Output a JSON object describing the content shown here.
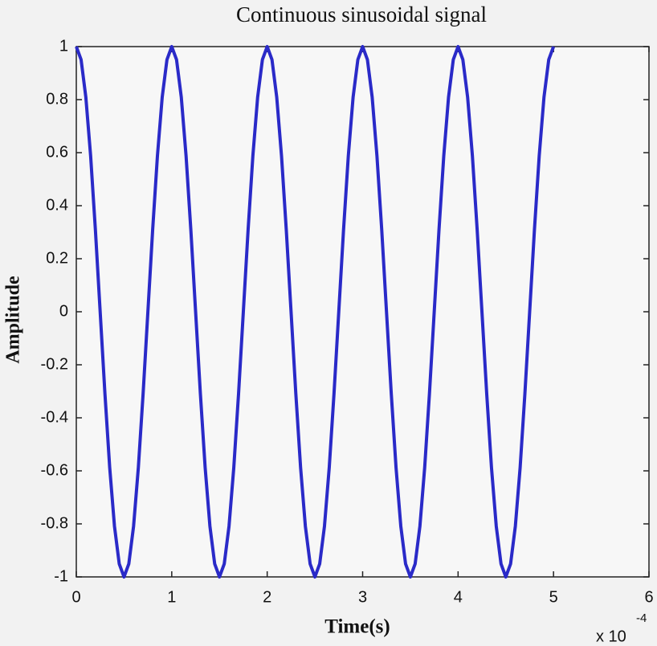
{
  "chart_data": {
    "type": "line",
    "title": "Continuous sinusoidal signal",
    "x_label": "Time(s)",
    "y_label": "Amplitude",
    "x_multiplier": "x 10",
    "x_multiplier_exponent": "-4",
    "color": "#2a2ac8",
    "grid": false,
    "x": [
      0,
      0.05,
      0.1,
      0.15,
      0.2,
      0.25,
      0.3,
      0.35,
      0.4,
      0.45,
      0.5,
      0.55,
      0.6,
      0.65,
      0.7,
      0.75,
      0.8,
      0.85,
      0.9,
      0.95,
      1,
      1.05,
      1.1,
      1.15,
      1.2,
      1.25,
      1.3,
      1.35,
      1.4,
      1.45,
      1.5,
      1.55,
      1.6,
      1.65,
      1.7,
      1.75,
      1.8,
      1.85,
      1.9,
      1.95,
      2,
      2.05,
      2.1,
      2.15,
      2.2,
      2.25,
      2.3,
      2.35,
      2.4,
      2.45,
      2.5,
      2.55,
      2.6,
      2.65,
      2.7,
      2.75,
      2.8,
      2.85,
      2.9,
      2.95,
      3,
      3.05,
      3.1,
      3.15,
      3.2,
      3.25,
      3.3,
      3.35,
      3.4,
      3.45,
      3.5,
      3.55,
      3.6,
      3.65,
      3.7,
      3.75,
      3.8,
      3.85,
      3.9,
      3.95,
      4,
      4.05,
      4.1,
      4.15,
      4.2,
      4.25,
      4.3,
      4.35,
      4.4,
      4.45,
      4.5,
      4.55,
      4.6,
      4.65,
      4.7,
      4.75,
      4.8,
      4.85,
      4.9,
      4.95,
      5
    ],
    "values": [
      1,
      0.951,
      0.809,
      0.588,
      0.309,
      0,
      -0.309,
      -0.588,
      -0.809,
      -0.951,
      -1,
      -0.951,
      -0.809,
      -0.588,
      -0.309,
      0,
      0.309,
      0.588,
      0.809,
      0.951,
      1,
      0.951,
      0.809,
      0.588,
      0.309,
      0,
      -0.309,
      -0.588,
      -0.809,
      -0.951,
      -1,
      -0.951,
      -0.809,
      -0.588,
      -0.309,
      0,
      0.309,
      0.588,
      0.809,
      0.951,
      1,
      0.951,
      0.809,
      0.588,
      0.309,
      0,
      -0.309,
      -0.588,
      -0.809,
      -0.951,
      -1,
      -0.951,
      -0.809,
      -0.588,
      -0.309,
      0,
      0.309,
      0.588,
      0.809,
      0.951,
      1,
      0.951,
      0.809,
      0.588,
      0.309,
      0,
      -0.309,
      -0.588,
      -0.809,
      -0.951,
      -1,
      -0.951,
      -0.809,
      -0.588,
      -0.309,
      0,
      0.309,
      0.588,
      0.809,
      0.951,
      1,
      0.951,
      0.809,
      0.588,
      0.309,
      0,
      -0.309,
      -0.588,
      -0.809,
      -0.951,
      -1,
      -0.951,
      -0.809,
      -0.588,
      -0.309,
      0,
      0.309,
      0.588,
      0.809,
      0.951,
      1
    ],
    "xlim": [
      0,
      6
    ],
    "xticks": [
      0,
      1,
      2,
      3,
      4,
      5,
      6
    ],
    "ylim": [
      -1,
      1
    ],
    "yticks": [
      -1,
      -0.8,
      -0.6,
      -0.4,
      -0.2,
      0,
      0.2,
      0.4,
      0.6,
      0.8,
      1
    ]
  }
}
